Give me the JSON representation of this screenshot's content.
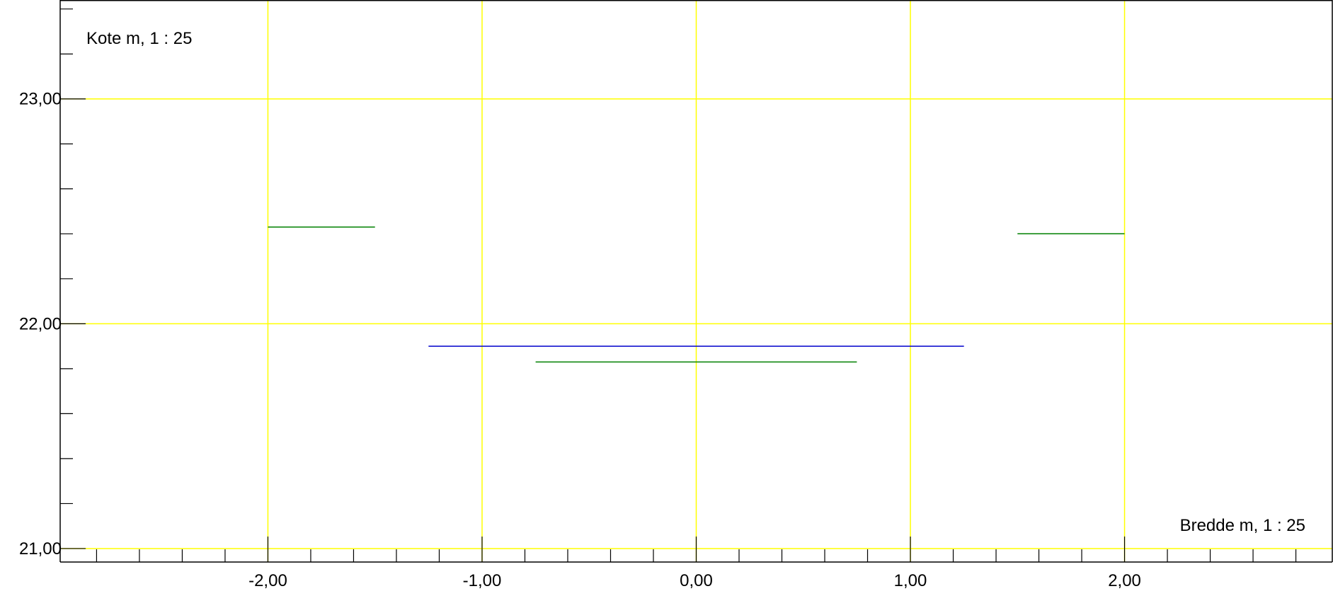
{
  "chart_data": {
    "type": "line",
    "title": "",
    "ylabel": "Kote m, 1 : 25",
    "xlabel": "Bredde m, 1 : 25",
    "xlim": [
      -2.97,
      2.97
    ],
    "ylim": [
      20.94,
      23.44
    ],
    "x_major_ticks": [
      -2,
      -1,
      0,
      1,
      2
    ],
    "x_tick_labels": [
      "-2,00",
      "-1,00",
      "0,00",
      "1,00",
      "2,00"
    ],
    "x_minor_step": 0.2,
    "y_major_ticks": [
      21,
      22,
      23
    ],
    "y_tick_labels": [
      "21,00",
      "22,00",
      "23,00"
    ],
    "y_minor_step": 0.2,
    "grid": true,
    "colors": {
      "grid": "#ffff00",
      "axis": "#000000",
      "blue": "#0000cc",
      "green": "#008000"
    },
    "segments": [
      {
        "x": [
          -2.0,
          -1.5
        ],
        "y": [
          22.43,
          22.43
        ],
        "color": "#008000"
      },
      {
        "x": [
          1.5,
          2.0
        ],
        "y": [
          22.4,
          22.4
        ],
        "color": "#008000"
      },
      {
        "x": [
          -1.25,
          1.25
        ],
        "y": [
          21.9,
          21.9
        ],
        "color": "#0000cc"
      },
      {
        "x": [
          -0.75,
          0.75
        ],
        "y": [
          21.83,
          21.83
        ],
        "color": "#008000"
      }
    ]
  }
}
